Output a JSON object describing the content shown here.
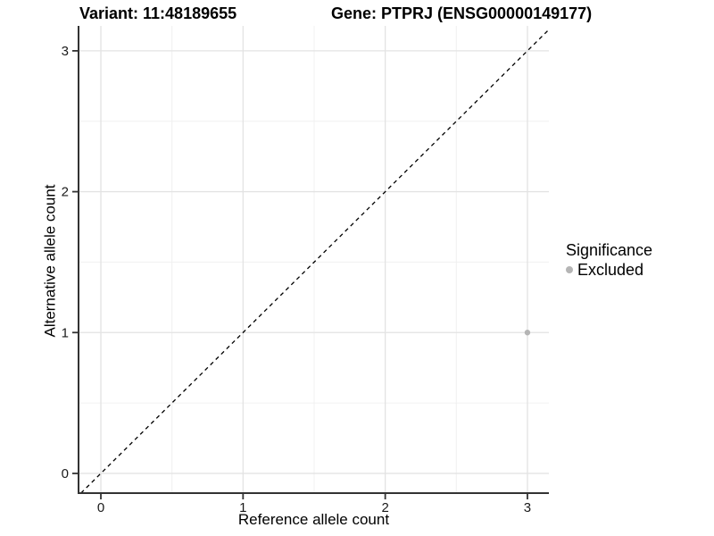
{
  "header": {
    "variant_title": "Variant: 11:48189655",
    "gene_title": "Gene: PTPRJ (ENSG00000149177)"
  },
  "legend": {
    "title": "Significance",
    "items": [
      {
        "label": "Excluded",
        "color": "#b5b5b5"
      }
    ]
  },
  "chart_data": {
    "type": "scatter",
    "title_left": "Variant: 11:48189655",
    "title_right": "Gene: PTPRJ (ENSG00000149177)",
    "xlabel": "Reference allele count",
    "ylabel": "Alternative allele count",
    "xlim": [
      -0.157,
      3.151
    ],
    "ylim": [
      -0.14,
      3.177
    ],
    "x_ticks": [
      0,
      1,
      2,
      3
    ],
    "y_ticks": [
      0,
      1,
      2,
      3
    ],
    "x_minor": [
      0.5,
      1.5,
      2.5
    ],
    "y_minor": [
      0.5,
      1.5,
      2.5
    ],
    "grid": true,
    "legend_position": "right",
    "legend_title": "Significance",
    "series": [
      {
        "name": "Excluded",
        "type": "points",
        "color": "#b5b5b5",
        "point_radius": 3.2,
        "points": [
          {
            "x": 3,
            "y": 1
          }
        ]
      }
    ],
    "reference_line": {
      "kind": "identity",
      "equation": "y = x",
      "style": "dashed",
      "color": "#000000"
    }
  },
  "colors": {
    "background": "#ffffff",
    "axis_line": "#333333",
    "tick_mark": "#333333",
    "tick_label": "#1a1a1a",
    "grid_major": "#e3e3e3",
    "grid_minor": "#f0f0f0",
    "point": "#b5b5b5"
  }
}
